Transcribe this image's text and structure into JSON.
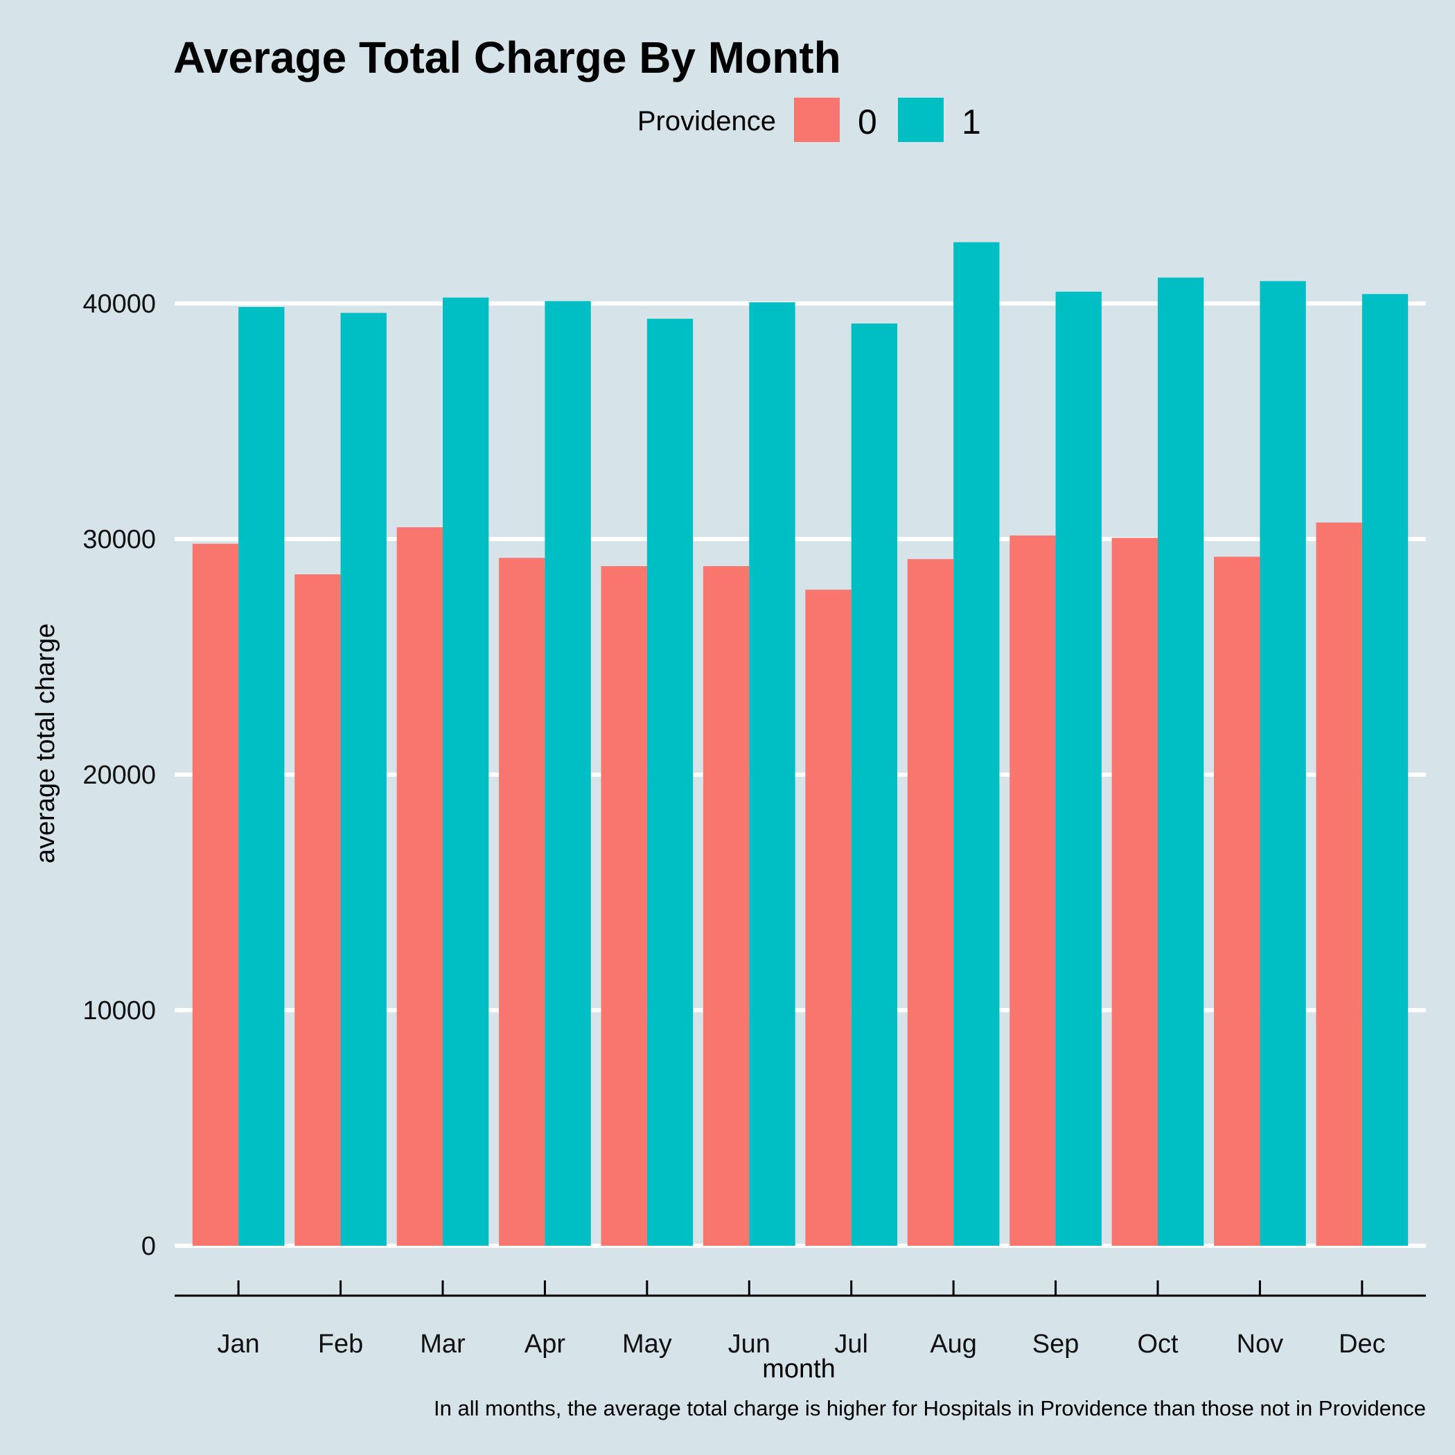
{
  "chart_data": {
    "type": "bar",
    "title": "Average Total Charge By Month",
    "xlabel": "month",
    "ylabel": "average total charge",
    "caption": "In all months, the average total charge is higher for Hospitals in Providence than those not in Providence",
    "legend": {
      "title": "Providence",
      "placement": "top-center"
    },
    "categories": [
      "Jan",
      "Feb",
      "Mar",
      "Apr",
      "May",
      "Jun",
      "Jul",
      "Aug",
      "Sep",
      "Oct",
      "Nov",
      "Dec"
    ],
    "series": [
      {
        "name": "0",
        "color": "#F8766D",
        "values": [
          29800,
          28500,
          30500,
          29200,
          28850,
          28850,
          27850,
          29150,
          30150,
          30050,
          29250,
          30700
        ]
      },
      {
        "name": "1",
        "color": "#00BFC4",
        "values": [
          39850,
          39600,
          40250,
          40100,
          39350,
          40050,
          39150,
          42600,
          40500,
          41100,
          40950,
          40400
        ]
      }
    ],
    "yticks": [
      0,
      10000,
      20000,
      30000,
      40000
    ],
    "ytick_labels": [
      "0",
      "10000",
      "20000",
      "30000",
      "40000"
    ],
    "ylim": [
      0,
      44000
    ],
    "grid": "horizontal-major"
  }
}
